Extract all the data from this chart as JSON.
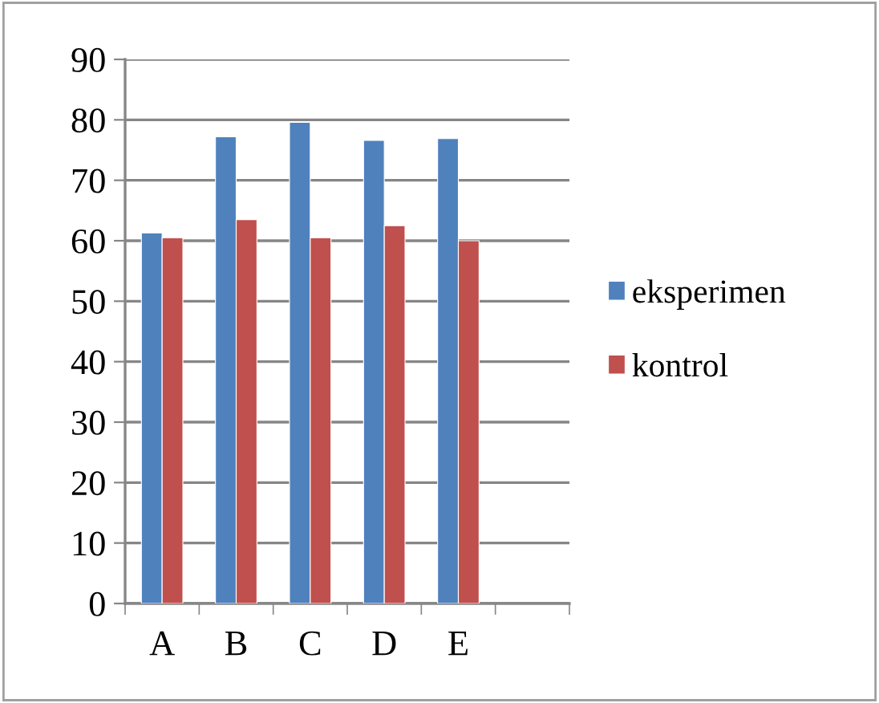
{
  "chart_data": {
    "type": "bar",
    "categories": [
      "A",
      "B",
      "C",
      "D",
      "E",
      null
    ],
    "series": [
      {
        "name": "eksperimen",
        "color": "#4f81bd",
        "values": [
          61.3,
          77.2,
          79.6,
          76.6,
          76.9,
          null
        ]
      },
      {
        "name": "kontrol",
        "color": "#c0504d",
        "values": [
          60.5,
          63.5,
          60.5,
          62.5,
          60.0,
          null
        ]
      }
    ],
    "ylim": [
      0,
      90
    ],
    "yticks": [
      0,
      10,
      20,
      30,
      40,
      50,
      60,
      70,
      80,
      90
    ],
    "grid": "y",
    "legend": "right"
  }
}
